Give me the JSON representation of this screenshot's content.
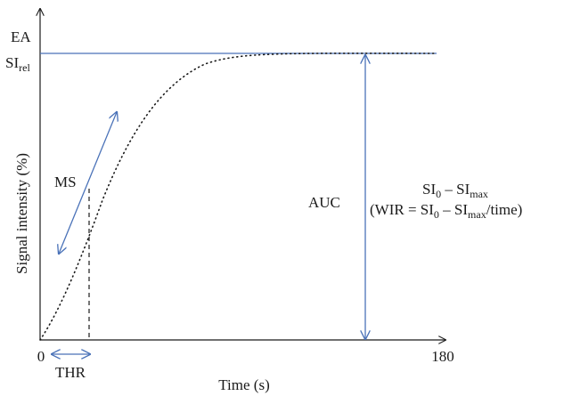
{
  "diagram": {
    "y_axis": {
      "label": "Signal intensity (%)",
      "ea_label": "EA",
      "si_rel_base": "SI",
      "si_rel_sub": "rel"
    },
    "x_axis": {
      "label": "Time (s)",
      "tick_start": "0",
      "tick_end": "180",
      "thr_label": "THR"
    },
    "ms_label": "MS",
    "auc_label": "AUC",
    "formula_line1": {
      "si0_base": "SI",
      "si0_sub": "0",
      "minus": " – ",
      "simax_base": "SI",
      "simax_sub": "max"
    },
    "formula_line2": {
      "open": "(WIR = SI",
      "si0_sub": "0",
      "minus": " – SI",
      "simax_sub": "max",
      "close": "/time)"
    },
    "colors": {
      "accent_line": "#4a72b8",
      "axis": "#1a1a1a",
      "curve": "#1a1a1a"
    }
  }
}
